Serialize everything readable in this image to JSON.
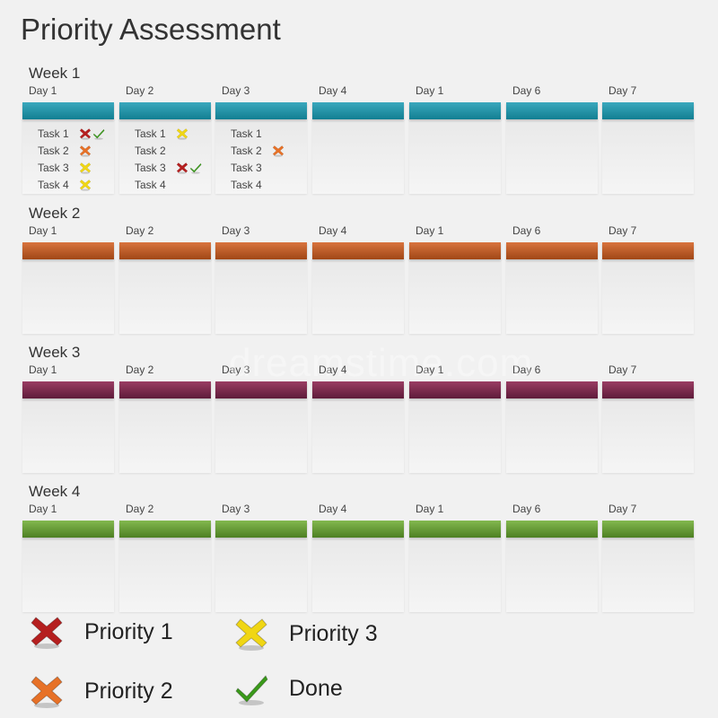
{
  "title": "Priority Assessment",
  "watermark": "dreamstime.com",
  "colors": {
    "week1": [
      "#3aa8bd",
      "#127f92"
    ],
    "week2": [
      "#d8743e",
      "#a14716"
    ],
    "week3": [
      "#9a3d63",
      "#5e1b3a"
    ],
    "week4": [
      "#83b84f",
      "#4d7f22"
    ],
    "priority1": "#b51f1f",
    "priority2": "#e77127",
    "priority3": "#f0d614",
    "done": "#3a9a1a"
  },
  "weeks": [
    {
      "label": "Week 1",
      "days": [
        {
          "label": "Day 1",
          "tasks": [
            {
              "name": "Task 1",
              "marks": [
                "priority1",
                "done"
              ]
            },
            {
              "name": "Task 2",
              "marks": [
                "priority2"
              ]
            },
            {
              "name": "Task 3",
              "marks": [
                "priority3"
              ]
            },
            {
              "name": "Task 4",
              "marks": [
                "priority3"
              ]
            }
          ]
        },
        {
          "label": "Day 2",
          "tasks": [
            {
              "name": "Task 1",
              "marks": [
                "priority3"
              ]
            },
            {
              "name": "Task 2",
              "marks": []
            },
            {
              "name": "Task 3",
              "marks": [
                "priority1",
                "done"
              ]
            },
            {
              "name": "Task 4",
              "marks": []
            }
          ]
        },
        {
          "label": "Day 3",
          "tasks": [
            {
              "name": "Task 1",
              "marks": []
            },
            {
              "name": "Task 2",
              "marks": [
                "priority2"
              ]
            },
            {
              "name": "Task 3",
              "marks": []
            },
            {
              "name": "Task 4",
              "marks": []
            }
          ]
        },
        {
          "label": "Day 4",
          "tasks": []
        },
        {
          "label": "Day 1",
          "tasks": []
        },
        {
          "label": "Day 6",
          "tasks": []
        },
        {
          "label": "Day 7",
          "tasks": []
        }
      ]
    },
    {
      "label": "Week 2",
      "days": [
        {
          "label": "Day 1",
          "tasks": []
        },
        {
          "label": "Day 2",
          "tasks": []
        },
        {
          "label": "Day 3",
          "tasks": []
        },
        {
          "label": "Day 4",
          "tasks": []
        },
        {
          "label": "Day 1",
          "tasks": []
        },
        {
          "label": "Day 6",
          "tasks": []
        },
        {
          "label": "Day 7",
          "tasks": []
        }
      ]
    },
    {
      "label": "Week 3",
      "days": [
        {
          "label": "Day 1",
          "tasks": []
        },
        {
          "label": "Day 2",
          "tasks": []
        },
        {
          "label": "Day 3",
          "tasks": []
        },
        {
          "label": "Day 4",
          "tasks": []
        },
        {
          "label": "Day 1",
          "tasks": []
        },
        {
          "label": "Day 6",
          "tasks": []
        },
        {
          "label": "Day 7",
          "tasks": []
        }
      ]
    },
    {
      "label": "Week 4",
      "days": [
        {
          "label": "Day 1",
          "tasks": []
        },
        {
          "label": "Day 2",
          "tasks": []
        },
        {
          "label": "Day 3",
          "tasks": []
        },
        {
          "label": "Day 4",
          "tasks": []
        },
        {
          "label": "Day 1",
          "tasks": []
        },
        {
          "label": "Day 6",
          "tasks": []
        },
        {
          "label": "Day 7",
          "tasks": []
        }
      ]
    }
  ],
  "legend": [
    {
      "key": "priority1",
      "icon": "x-icon",
      "label": "Priority 1"
    },
    {
      "key": "priority3",
      "icon": "x-icon",
      "label": "Priority 3"
    },
    {
      "key": "priority2",
      "icon": "x-icon",
      "label": "Priority 2"
    },
    {
      "key": "done",
      "icon": "check-icon",
      "label": "Done"
    }
  ]
}
